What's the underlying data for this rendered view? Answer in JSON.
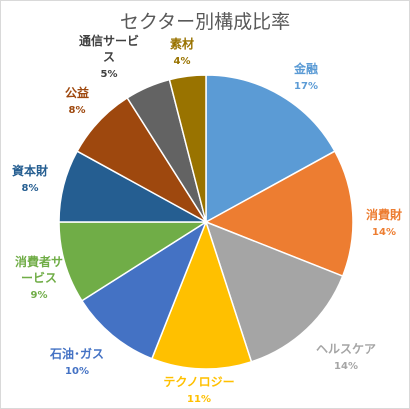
{
  "chart_data": {
    "type": "pie",
    "title": "セクター別構成比率",
    "slices": [
      {
        "label": "金融",
        "value": 17,
        "value_label": "17%",
        "color": "#5b9bd5",
        "label_color": "#5b9bd5"
      },
      {
        "label": "消費財",
        "value": 14,
        "value_label": "14%",
        "color": "#ed7d31",
        "label_color": "#ed7d31"
      },
      {
        "label": "ヘルスケア",
        "value": 14,
        "value_label": "14%",
        "color": "#a5a5a5",
        "label_color": "#a5a5a5"
      },
      {
        "label": "テクノロジー",
        "value": 11,
        "value_label": "11%",
        "color": "#ffc000",
        "label_color": "#ffc000"
      },
      {
        "label": "石油･ガス",
        "value": 10,
        "value_label": "10%",
        "color": "#4472c4",
        "label_color": "#4472c4"
      },
      {
        "label": "消費者サービス",
        "value": 9,
        "value_label": "9%",
        "color": "#70ad47",
        "label_color": "#70ad47"
      },
      {
        "label": "資本財",
        "value": 8,
        "value_label": "8%",
        "color": "#255e91",
        "label_color": "#255e91"
      },
      {
        "label": "公益",
        "value": 8,
        "value_label": "8%",
        "color": "#9e480e",
        "label_color": "#9e480e"
      },
      {
        "label": "通信サービス",
        "value": 5,
        "value_label": "5%",
        "color": "#636363",
        "label_color": "#404040"
      },
      {
        "label": "素材",
        "value": 4,
        "value_label": "4%",
        "color": "#997300",
        "label_color": "#997300"
      }
    ],
    "start_angle": "12 o'clock",
    "direction": "clockwise",
    "legend": "none"
  }
}
